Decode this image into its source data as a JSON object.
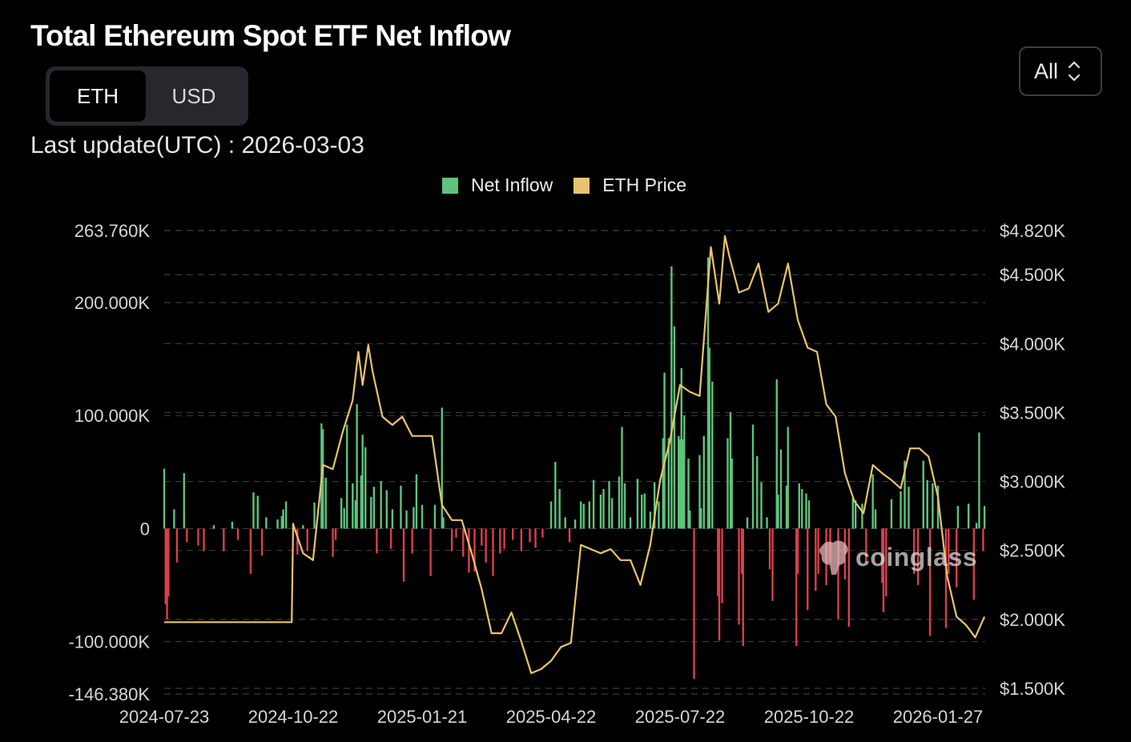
{
  "header": {
    "title": "Total Ethereum Spot ETF Net Inflow",
    "unit_toggle": [
      {
        "label": "ETH",
        "active": true
      },
      {
        "label": "USD",
        "active": false
      }
    ],
    "last_update": "Last update(UTC) : 2026-03-03",
    "range_select": {
      "value": "All",
      "icon": "up-down-chevron-icon"
    }
  },
  "watermark": "coinglass",
  "chart_data": {
    "type": "bar+line",
    "title": "",
    "legend": {
      "position": "top-center",
      "entries": [
        {
          "name": "Net Inflow",
          "color": "#5ec37d"
        },
        {
          "name": "ETH Price",
          "color": "#e9c46a"
        }
      ]
    },
    "colors": {
      "positive": "#5ec37d",
      "negative": "#d9404c",
      "price": "#e9c46a",
      "grid": "#3a3a3a"
    },
    "grid": true,
    "x_ticks": [
      "2024-07-23",
      "2024-10-22",
      "2025-01-21",
      "2025-04-22",
      "2025-07-22",
      "2025-10-22",
      "2026-01-27"
    ],
    "y_left": {
      "range": [
        -146380,
        263760
      ],
      "ticks": [
        {
          "value": 263760,
          "label": "263.760K"
        },
        {
          "value": 200000,
          "label": "200.000K"
        },
        {
          "value": 100000,
          "label": "100.000K"
        },
        {
          "value": 0,
          "label": "0"
        },
        {
          "value": -100000,
          "label": "-100.000K"
        },
        {
          "value": -146380,
          "label": "-146.380K"
        }
      ]
    },
    "y_right": {
      "range": [
        1500,
        4820
      ],
      "ticks": [
        {
          "value": 4820,
          "label": "$4.820K"
        },
        {
          "value": 4500,
          "label": "$4.500K"
        },
        {
          "value": 4000,
          "label": "$4.000K"
        },
        {
          "value": 3500,
          "label": "$3.500K"
        },
        {
          "value": 3000,
          "label": "$3.000K"
        },
        {
          "value": 2500,
          "label": "$2.500K"
        },
        {
          "value": 2000,
          "label": "$2.000K"
        },
        {
          "value": 1500,
          "label": "$1.500K"
        }
      ]
    },
    "net_inflow_eth_k": [
      [
        "2024-07-23",
        53
      ],
      [
        "2024-07-24",
        -67
      ],
      [
        "2024-07-25",
        -80
      ],
      [
        "2024-07-26",
        -60
      ],
      [
        "2024-07-30",
        17
      ],
      [
        "2024-08-01",
        -30
      ],
      [
        "2024-08-06",
        49
      ],
      [
        "2024-08-08",
        -12
      ],
      [
        "2024-08-16",
        -15
      ],
      [
        "2024-08-20",
        -20
      ],
      [
        "2024-08-27",
        3
      ],
      [
        "2024-09-03",
        -20
      ],
      [
        "2024-09-09",
        6
      ],
      [
        "2024-09-13",
        -10
      ],
      [
        "2024-09-22",
        -40
      ],
      [
        "2024-09-24",
        32
      ],
      [
        "2024-09-27",
        29
      ],
      [
        "2024-09-30",
        -24
      ],
      [
        "2024-10-03",
        10
      ],
      [
        "2024-10-11",
        8
      ],
      [
        "2024-10-14",
        11
      ],
      [
        "2024-10-15",
        17
      ],
      [
        "2024-10-17",
        24
      ],
      [
        "2024-10-22",
        5
      ],
      [
        "2024-10-25",
        -23
      ],
      [
        "2024-10-29",
        3
      ],
      [
        "2024-11-01",
        -20
      ],
      [
        "2024-11-06",
        23
      ],
      [
        "2024-11-11",
        93
      ],
      [
        "2024-11-12",
        88
      ],
      [
        "2024-11-14",
        45
      ],
      [
        "2024-11-19",
        -25
      ],
      [
        "2024-11-21",
        -10
      ],
      [
        "2024-11-25",
        27
      ],
      [
        "2024-11-27",
        18
      ],
      [
        "2024-11-29",
        92
      ],
      [
        "2024-12-03",
        40
      ],
      [
        "2024-12-05",
        25
      ],
      [
        "2024-12-06",
        110
      ],
      [
        "2024-12-09",
        47
      ],
      [
        "2024-12-10",
        83
      ],
      [
        "2024-12-12",
        72
      ],
      [
        "2024-12-16",
        28
      ],
      [
        "2024-12-18",
        37
      ],
      [
        "2024-12-20",
        -22
      ],
      [
        "2024-12-23",
        42
      ],
      [
        "2024-12-27",
        34
      ],
      [
        "2024-12-30",
        -18
      ],
      [
        "2024-12-31",
        17
      ],
      [
        "2025-01-06",
        38
      ],
      [
        "2025-01-08",
        -47
      ],
      [
        "2025-01-10",
        16
      ],
      [
        "2025-01-14",
        -22
      ],
      [
        "2025-01-15",
        19
      ],
      [
        "2025-01-17",
        48
      ],
      [
        "2025-01-21",
        21
      ],
      [
        "2025-01-27",
        -42
      ],
      [
        "2025-01-30",
        21
      ],
      [
        "2025-02-04",
        107
      ],
      [
        "2025-02-05",
        10
      ],
      [
        "2025-02-11",
        -20
      ],
      [
        "2025-02-14",
        -8
      ],
      [
        "2025-02-19",
        -25
      ],
      [
        "2025-02-23",
        -39
      ],
      [
        "2025-02-27",
        -38
      ],
      [
        "2025-03-04",
        -15
      ],
      [
        "2025-03-07",
        -30
      ],
      [
        "2025-03-12",
        -42
      ],
      [
        "2025-03-17",
        -22
      ],
      [
        "2025-03-20",
        -18
      ],
      [
        "2025-03-26",
        -10
      ],
      [
        "2025-04-01",
        -20
      ],
      [
        "2025-04-07",
        -12
      ],
      [
        "2025-04-11",
        -17
      ],
      [
        "2025-04-16",
        -8
      ],
      [
        "2025-04-22",
        24
      ],
      [
        "2025-04-25",
        59
      ],
      [
        "2025-04-28",
        35
      ],
      [
        "2025-05-02",
        10
      ],
      [
        "2025-05-05",
        -12
      ],
      [
        "2025-05-09",
        8
      ],
      [
        "2025-05-13",
        24
      ],
      [
        "2025-05-15",
        22
      ],
      [
        "2025-05-19",
        24
      ],
      [
        "2025-05-22",
        43
      ],
      [
        "2025-05-27",
        30
      ],
      [
        "2025-05-29",
        35
      ],
      [
        "2025-06-02",
        42
      ],
      [
        "2025-06-04",
        27
      ],
      [
        "2025-06-09",
        46
      ],
      [
        "2025-06-11",
        90
      ],
      [
        "2025-06-13",
        40
      ],
      [
        "2025-06-17",
        10
      ],
      [
        "2025-06-22",
        44
      ],
      [
        "2025-06-25",
        30
      ],
      [
        "2025-06-27",
        31
      ],
      [
        "2025-07-01",
        15
      ],
      [
        "2025-07-04",
        41
      ],
      [
        "2025-07-07",
        24
      ],
      [
        "2025-07-10",
        80
      ],
      [
        "2025-07-11",
        138
      ],
      [
        "2025-07-14",
        80
      ],
      [
        "2025-07-16",
        232
      ],
      [
        "2025-07-18",
        179
      ],
      [
        "2025-07-21",
        82
      ],
      [
        "2025-07-22",
        79
      ],
      [
        "2025-07-23",
        142
      ],
      [
        "2025-07-24",
        79
      ],
      [
        "2025-07-25",
        100
      ],
      [
        "2025-07-28",
        62
      ],
      [
        "2025-07-29",
        16
      ],
      [
        "2025-08-01",
        -133
      ],
      [
        "2025-08-05",
        65
      ],
      [
        "2025-08-06",
        18
      ],
      [
        "2025-08-08",
        82
      ],
      [
        "2025-08-11",
        240
      ],
      [
        "2025-08-12",
        160
      ],
      [
        "2025-08-14",
        130
      ],
      [
        "2025-08-18",
        -60
      ],
      [
        "2025-08-19",
        -99
      ],
      [
        "2025-08-21",
        -66
      ],
      [
        "2025-08-25",
        80
      ],
      [
        "2025-08-27",
        103
      ],
      [
        "2025-08-28",
        62
      ],
      [
        "2025-09-02",
        -85
      ],
      [
        "2025-09-04",
        -40
      ],
      [
        "2025-09-05",
        -104
      ],
      [
        "2025-09-08",
        10
      ],
      [
        "2025-09-12",
        92
      ],
      [
        "2025-09-15",
        64
      ],
      [
        "2025-09-18",
        41
      ],
      [
        "2025-09-22",
        10
      ],
      [
        "2025-09-24",
        -36
      ],
      [
        "2025-09-26",
        -64
      ],
      [
        "2025-09-29",
        132
      ],
      [
        "2025-09-30",
        30
      ],
      [
        "2025-10-02",
        70
      ],
      [
        "2025-10-06",
        38
      ],
      [
        "2025-10-07",
        90
      ],
      [
        "2025-10-13",
        -104
      ],
      [
        "2025-10-14",
        -40
      ],
      [
        "2025-10-15",
        40
      ],
      [
        "2025-10-17",
        35
      ],
      [
        "2025-10-20",
        31
      ],
      [
        "2025-10-21",
        -72
      ],
      [
        "2025-10-22",
        25
      ],
      [
        "2025-10-27",
        -55
      ],
      [
        "2025-10-29",
        -40
      ],
      [
        "2025-11-04",
        -50
      ],
      [
        "2025-11-07",
        -30
      ],
      [
        "2025-11-13",
        -80
      ],
      [
        "2025-11-18",
        -45
      ],
      [
        "2025-11-21",
        -87
      ],
      [
        "2025-11-24",
        27
      ],
      [
        "2025-11-26",
        25
      ],
      [
        "2025-12-01",
        22
      ],
      [
        "2025-12-04",
        -30
      ],
      [
        "2025-12-09",
        48
      ],
      [
        "2025-12-11",
        17
      ],
      [
        "2025-12-16",
        -48
      ],
      [
        "2025-12-17",
        -74
      ],
      [
        "2025-12-19",
        -60
      ],
      [
        "2025-12-23",
        26
      ],
      [
        "2025-12-30",
        33
      ],
      [
        "2026-01-02",
        60
      ],
      [
        "2026-01-05",
        37
      ],
      [
        "2026-01-09",
        -40
      ],
      [
        "2026-01-12",
        -50
      ],
      [
        "2026-01-16",
        60
      ],
      [
        "2026-01-19",
        43
      ],
      [
        "2026-01-21",
        -95
      ],
      [
        "2026-01-23",
        40
      ],
      [
        "2026-01-27",
        38
      ],
      [
        "2026-02-02",
        -88
      ],
      [
        "2026-02-04",
        -40
      ],
      [
        "2026-02-10",
        -52
      ],
      [
        "2026-02-11",
        20
      ],
      [
        "2026-02-19",
        22
      ],
      [
        "2026-02-23",
        -63
      ],
      [
        "2026-02-25",
        5
      ],
      [
        "2026-02-27",
        85
      ],
      [
        "2026-03-02",
        -20
      ],
      [
        "2026-03-03",
        20
      ]
    ],
    "eth_price_usd": [
      [
        "2024-07-23",
        1980
      ],
      [
        "2024-10-21",
        1980
      ],
      [
        "2024-10-22",
        2690
      ],
      [
        "2024-10-29",
        2480
      ],
      [
        "2024-11-05",
        2430
      ],
      [
        "2024-11-12",
        3120
      ],
      [
        "2024-11-19",
        3090
      ],
      [
        "2024-11-26",
        3360
      ],
      [
        "2024-12-03",
        3590
      ],
      [
        "2024-12-07",
        3940
      ],
      [
        "2024-12-10",
        3700
      ],
      [
        "2024-12-14",
        3990
      ],
      [
        "2024-12-17",
        3800
      ],
      [
        "2024-12-24",
        3470
      ],
      [
        "2024-12-31",
        3410
      ],
      [
        "2025-01-07",
        3470
      ],
      [
        "2025-01-14",
        3330
      ],
      [
        "2025-01-21",
        3330
      ],
      [
        "2025-01-28",
        3330
      ],
      [
        "2025-02-04",
        2830
      ],
      [
        "2025-02-11",
        2720
      ],
      [
        "2025-02-18",
        2720
      ],
      [
        "2025-02-25",
        2480
      ],
      [
        "2025-03-04",
        2220
      ],
      [
        "2025-03-11",
        1900
      ],
      [
        "2025-03-18",
        1900
      ],
      [
        "2025-03-25",
        2050
      ],
      [
        "2025-04-01",
        1840
      ],
      [
        "2025-04-08",
        1610
      ],
      [
        "2025-04-15",
        1640
      ],
      [
        "2025-04-22",
        1700
      ],
      [
        "2025-04-29",
        1800
      ],
      [
        "2025-05-06",
        1830
      ],
      [
        "2025-05-13",
        2540
      ],
      [
        "2025-05-20",
        2510
      ],
      [
        "2025-05-27",
        2480
      ],
      [
        "2025-06-03",
        2510
      ],
      [
        "2025-06-10",
        2430
      ],
      [
        "2025-06-17",
        2430
      ],
      [
        "2025-06-24",
        2250
      ],
      [
        "2025-07-01",
        2540
      ],
      [
        "2025-07-08",
        3010
      ],
      [
        "2025-07-15",
        3300
      ],
      [
        "2025-07-22",
        3700
      ],
      [
        "2025-07-29",
        3650
      ],
      [
        "2025-08-05",
        3620
      ],
      [
        "2025-08-13",
        4700
      ],
      [
        "2025-08-19",
        4290
      ],
      [
        "2025-08-23",
        4780
      ],
      [
        "2025-08-26",
        4640
      ],
      [
        "2025-09-02",
        4370
      ],
      [
        "2025-09-09",
        4400
      ],
      [
        "2025-09-16",
        4580
      ],
      [
        "2025-09-23",
        4230
      ],
      [
        "2025-09-30",
        4290
      ],
      [
        "2025-10-07",
        4580
      ],
      [
        "2025-10-14",
        4170
      ],
      [
        "2025-10-21",
        3970
      ],
      [
        "2025-10-28",
        3940
      ],
      [
        "2025-11-04",
        3560
      ],
      [
        "2025-11-11",
        3470
      ],
      [
        "2025-11-18",
        3060
      ],
      [
        "2025-11-25",
        2860
      ],
      [
        "2025-12-02",
        2770
      ],
      [
        "2025-12-09",
        3120
      ],
      [
        "2025-12-16",
        3060
      ],
      [
        "2025-12-23",
        3010
      ],
      [
        "2025-12-30",
        2950
      ],
      [
        "2026-01-06",
        3240
      ],
      [
        "2026-01-13",
        3240
      ],
      [
        "2026-01-20",
        3180
      ],
      [
        "2026-01-27",
        2890
      ],
      [
        "2026-02-03",
        2310
      ],
      [
        "2026-02-10",
        2020
      ],
      [
        "2026-02-17",
        1960
      ],
      [
        "2026-02-24",
        1870
      ],
      [
        "2026-03-03",
        2020
      ]
    ]
  }
}
